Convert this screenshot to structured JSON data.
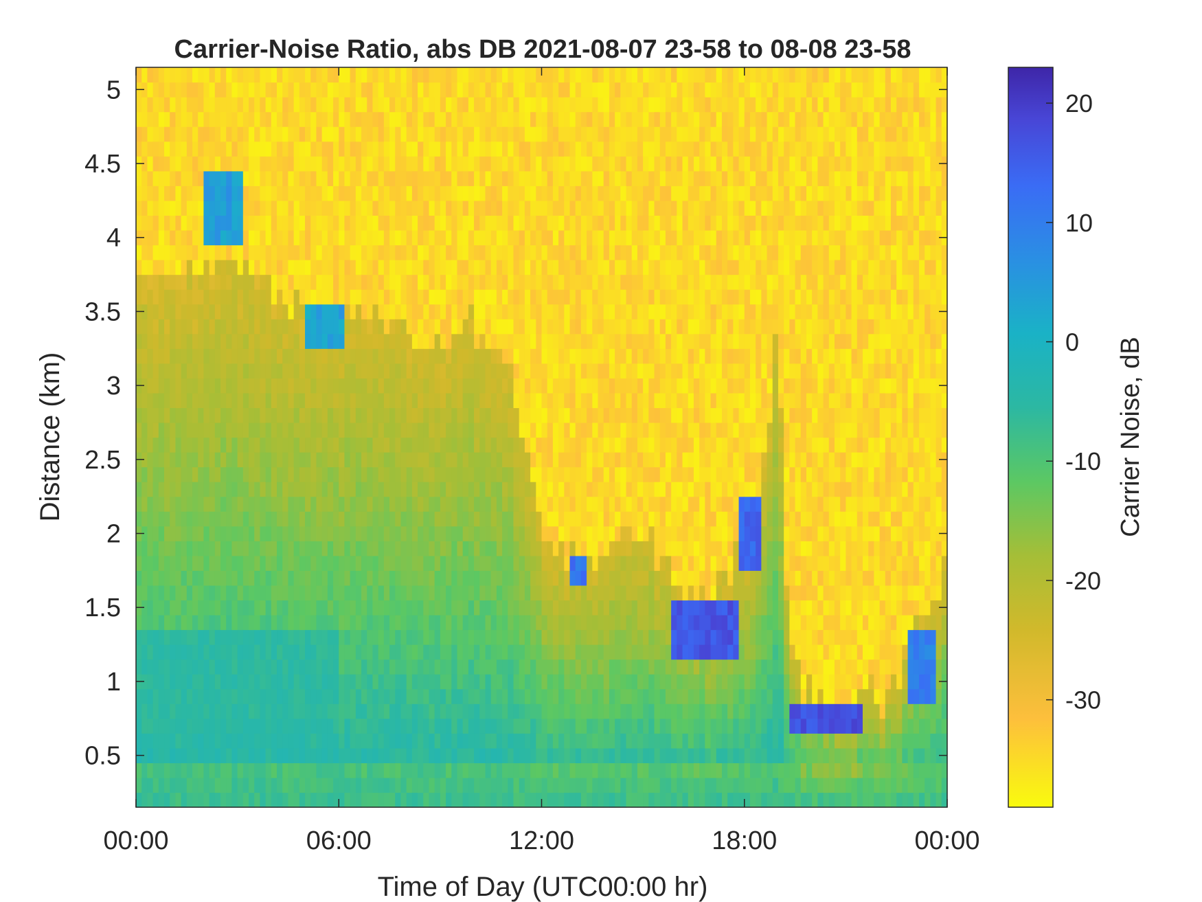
{
  "chart_data": {
    "type": "heatmap",
    "title": "Carrier-Noise Ratio, abs DB 2021-08-07 23-58 to 08-08 23-58",
    "xlabel": "Time of Day (UTC00:00 hr)",
    "ylabel": "Distance (km)",
    "x_ticks": [
      "00:00",
      "06:00",
      "12:00",
      "18:00",
      "00:00"
    ],
    "x_range_hours": [
      0,
      24
    ],
    "y_ticks": [
      "0.5",
      "1",
      "1.5",
      "2",
      "2.5",
      "3",
      "3.5",
      "4",
      "4.5",
      "5"
    ],
    "y_range_km": [
      0.15,
      5.15
    ],
    "colorbar": {
      "label": "Carrier Noise, dB",
      "ticks": [
        "20",
        "10",
        "0",
        "-10",
        "-20",
        "-30"
      ],
      "range": [
        -39,
        23
      ],
      "colormap": "parula-reversed",
      "colors": [
        "#f9fb0e",
        "#fdbf3c",
        "#d1b92b",
        "#a5be37",
        "#5cc863",
        "#2cb8a2",
        "#1ab2c6",
        "#2a8fe3",
        "#3a6cf5",
        "#4846d6",
        "#3e26a8"
      ]
    },
    "grid": false,
    "boundary_km_vs_hour": [
      [
        0,
        3.7
      ],
      [
        1,
        3.7
      ],
      [
        2,
        3.75
      ],
      [
        3,
        3.8
      ],
      [
        4,
        3.6
      ],
      [
        5,
        3.5
      ],
      [
        6,
        3.4
      ],
      [
        7,
        3.5
      ],
      [
        8,
        3.4
      ],
      [
        9,
        3.3
      ],
      [
        10,
        3.4
      ],
      [
        11,
        3.2
      ],
      [
        12,
        2.0
      ],
      [
        13,
        1.8
      ],
      [
        14,
        1.9
      ],
      [
        15,
        2.0
      ],
      [
        16,
        1.7
      ],
      [
        17,
        1.6
      ],
      [
        18,
        1.9
      ],
      [
        18.5,
        2.3
      ],
      [
        19,
        3.5
      ],
      [
        19.3,
        1.2
      ],
      [
        20,
        0.9
      ],
      [
        21,
        0.85
      ],
      [
        22,
        0.9
      ],
      [
        22.5,
        1.0
      ],
      [
        23,
        1.3
      ],
      [
        23.5,
        1.4
      ],
      [
        24,
        1.9
      ]
    ],
    "strong_returns": [
      {
        "hours": [
          2.0,
          3.2
        ],
        "km": [
          4.0,
          4.4
        ],
        "db": 5
      },
      {
        "hours": [
          5.0,
          6.2
        ],
        "km": [
          3.3,
          3.5
        ],
        "db": 4
      },
      {
        "hours": [
          12.8,
          13.3
        ],
        "km": [
          1.65,
          1.85
        ],
        "db": 12
      },
      {
        "hours": [
          15.8,
          17.8
        ],
        "km": [
          1.2,
          1.5
        ],
        "db": 17
      },
      {
        "hours": [
          17.8,
          18.5
        ],
        "km": [
          1.8,
          2.2
        ],
        "db": 15
      },
      {
        "hours": [
          19.3,
          21.5
        ],
        "km": [
          0.7,
          0.85
        ],
        "db": 18
      },
      {
        "hours": [
          22.8,
          23.6
        ],
        "km": [
          0.9,
          1.3
        ],
        "db": 10
      }
    ]
  }
}
